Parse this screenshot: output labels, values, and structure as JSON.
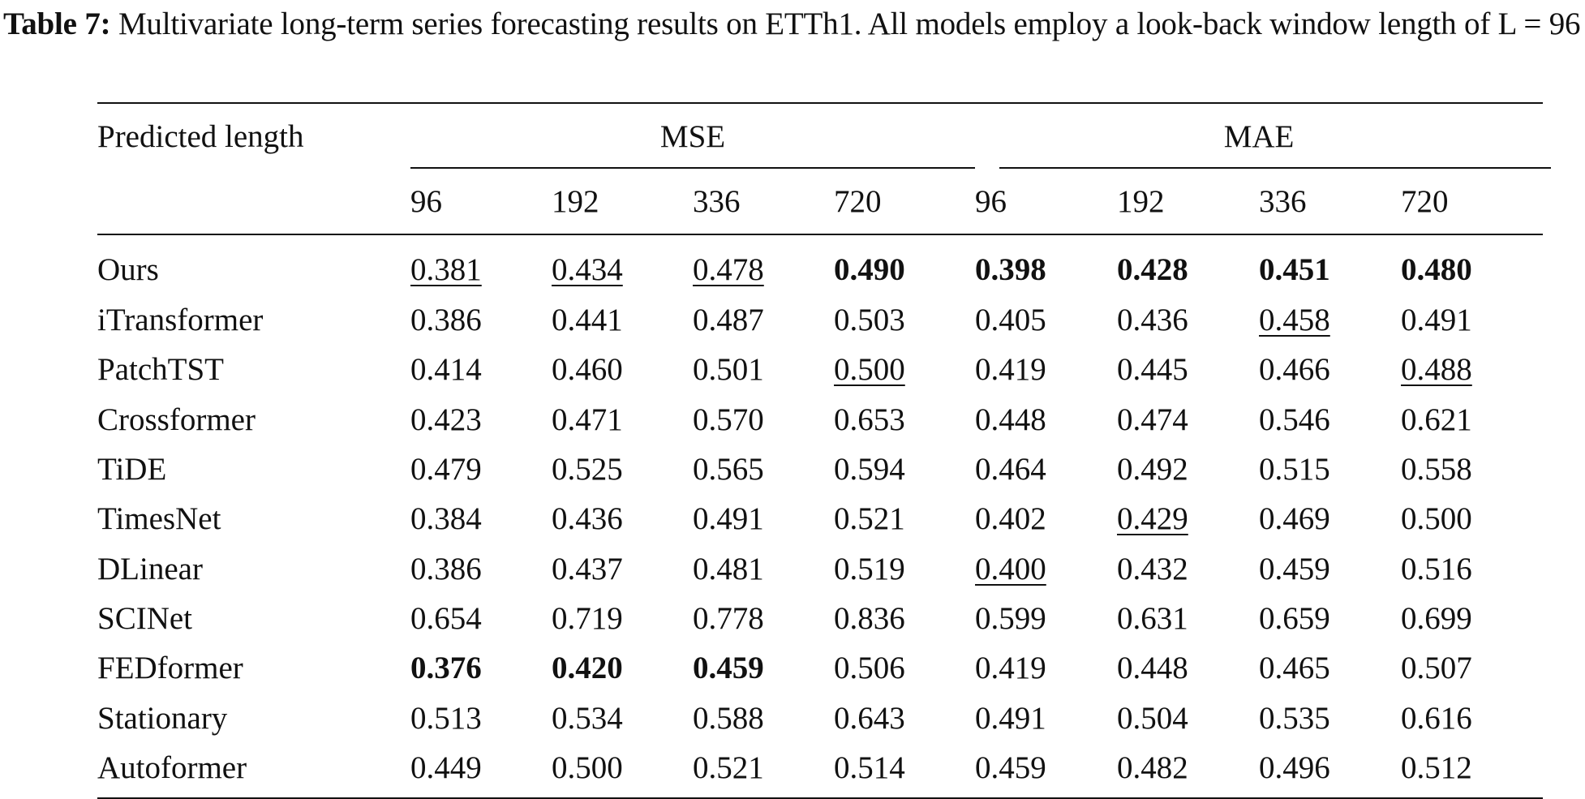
{
  "caption": {
    "label": "Table 7:",
    "text": " Multivariate long-term series forecasting results on ETTh1. All models employ a look-back window length of L = 96"
  },
  "table": {
    "corner_header": "Predicted length",
    "groups": [
      "MSE",
      "MAE"
    ],
    "horizons": [
      "96",
      "192",
      "336",
      "720",
      "96",
      "192",
      "336",
      "720"
    ],
    "rows": [
      {
        "model": "Ours",
        "values": [
          "0.381",
          "0.434",
          "0.478",
          "0.490",
          "0.398",
          "0.428",
          "0.451",
          "0.480"
        ],
        "bold": [
          3,
          4,
          5,
          6,
          7
        ],
        "underline": [
          0,
          1,
          2
        ]
      },
      {
        "model": "iTransformer",
        "values": [
          "0.386",
          "0.441",
          "0.487",
          "0.503",
          "0.405",
          "0.436",
          "0.458",
          "0.491"
        ],
        "bold": [],
        "underline": [
          6
        ]
      },
      {
        "model": "PatchTST",
        "values": [
          "0.414",
          "0.460",
          "0.501",
          "0.500",
          "0.419",
          "0.445",
          "0.466",
          "0.488"
        ],
        "bold": [],
        "underline": [
          3,
          7
        ]
      },
      {
        "model": "Crossformer",
        "values": [
          "0.423",
          "0.471",
          "0.570",
          "0.653",
          "0.448",
          "0.474",
          "0.546",
          "0.621"
        ],
        "bold": [],
        "underline": []
      },
      {
        "model": "TiDE",
        "values": [
          "0.479",
          "0.525",
          "0.565",
          "0.594",
          "0.464",
          "0.492",
          "0.515",
          "0.558"
        ],
        "bold": [],
        "underline": []
      },
      {
        "model": "TimesNet",
        "values": [
          "0.384",
          "0.436",
          "0.491",
          "0.521",
          "0.402",
          "0.429",
          "0.469",
          "0.500"
        ],
        "bold": [],
        "underline": [
          5
        ]
      },
      {
        "model": "DLinear",
        "values": [
          "0.386",
          "0.437",
          "0.481",
          "0.519",
          "0.400",
          "0.432",
          "0.459",
          "0.516"
        ],
        "bold": [],
        "underline": [
          4
        ]
      },
      {
        "model": "SCINet",
        "values": [
          "0.654",
          "0.719",
          "0.778",
          "0.836",
          "0.599",
          "0.631",
          "0.659",
          "0.699"
        ],
        "bold": [],
        "underline": []
      },
      {
        "model": "FEDformer",
        "values": [
          "0.376",
          "0.420",
          "0.459",
          "0.506",
          "0.419",
          "0.448",
          "0.465",
          "0.507"
        ],
        "bold": [
          0,
          1,
          2
        ],
        "underline": []
      },
      {
        "model": "Stationary",
        "values": [
          "0.513",
          "0.534",
          "0.588",
          "0.643",
          "0.491",
          "0.504",
          "0.535",
          "0.616"
        ],
        "bold": [],
        "underline": []
      },
      {
        "model": "Autoformer",
        "values": [
          "0.449",
          "0.500",
          "0.521",
          "0.514",
          "0.459",
          "0.482",
          "0.496",
          "0.512"
        ],
        "bold": [],
        "underline": []
      }
    ]
  }
}
